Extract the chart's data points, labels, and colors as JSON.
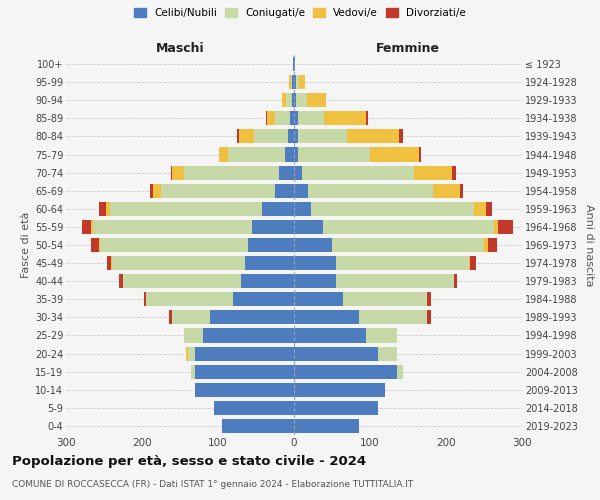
{
  "age_groups": [
    "0-4",
    "5-9",
    "10-14",
    "15-19",
    "20-24",
    "25-29",
    "30-34",
    "35-39",
    "40-44",
    "45-49",
    "50-54",
    "55-59",
    "60-64",
    "65-69",
    "70-74",
    "75-79",
    "80-84",
    "85-89",
    "90-94",
    "95-99",
    "100+"
  ],
  "birth_years": [
    "2019-2023",
    "2014-2018",
    "2009-2013",
    "2004-2008",
    "1999-2003",
    "1994-1998",
    "1989-1993",
    "1984-1988",
    "1979-1983",
    "1974-1978",
    "1969-1973",
    "1964-1968",
    "1959-1963",
    "1954-1958",
    "1949-1953",
    "1944-1948",
    "1939-1943",
    "1934-1938",
    "1929-1933",
    "1924-1928",
    "≤ 1923"
  ],
  "colors": {
    "celibe": "#4d7dbe",
    "coniugato": "#c8d9a8",
    "vedovo": "#f0c040",
    "divorziato": "#c0392b"
  },
  "maschi": {
    "celibe": [
      95,
      105,
      130,
      130,
      130,
      120,
      110,
      80,
      70,
      65,
      60,
      55,
      42,
      25,
      20,
      12,
      8,
      5,
      3,
      2,
      1
    ],
    "coniugato": [
      0,
      0,
      0,
      5,
      10,
      25,
      50,
      115,
      155,
      175,
      195,
      210,
      200,
      150,
      125,
      75,
      45,
      20,
      8,
      2,
      0
    ],
    "vedovo": [
      0,
      0,
      0,
      0,
      2,
      0,
      0,
      0,
      0,
      1,
      2,
      2,
      5,
      10,
      15,
      12,
      20,
      10,
      5,
      2,
      0
    ],
    "divorziato": [
      0,
      0,
      0,
      0,
      0,
      0,
      5,
      3,
      5,
      5,
      10,
      12,
      10,
      5,
      2,
      0,
      2,
      2,
      0,
      0,
      0
    ]
  },
  "femmine": {
    "nubile": [
      85,
      110,
      120,
      135,
      110,
      95,
      85,
      65,
      55,
      55,
      50,
      38,
      22,
      18,
      10,
      5,
      5,
      5,
      2,
      2,
      1
    ],
    "coniugata": [
      0,
      0,
      0,
      8,
      25,
      40,
      90,
      110,
      155,
      175,
      200,
      225,
      215,
      165,
      148,
      95,
      65,
      35,
      15,
      5,
      0
    ],
    "vedova": [
      0,
      0,
      0,
      0,
      0,
      0,
      0,
      0,
      0,
      2,
      5,
      5,
      15,
      35,
      50,
      65,
      68,
      55,
      25,
      8,
      0
    ],
    "divorziata": [
      0,
      0,
      0,
      0,
      0,
      0,
      5,
      5,
      5,
      8,
      12,
      20,
      8,
      5,
      5,
      2,
      5,
      2,
      0,
      0,
      0
    ]
  },
  "title": "Popolazione per età, sesso e stato civile - 2024",
  "subtitle": "COMUNE DI ROCCASECCA (FR) - Dati ISTAT 1° gennaio 2024 - Elaborazione TUTTITALIA.IT",
  "ylabel_left": "Fasce di età",
  "ylabel_right": "Anni di nascita",
  "xlabel_left": "Maschi",
  "xlabel_right": "Femmine",
  "xlim": 300,
  "bg_color": "#f5f5f5",
  "grid_color": "#cccccc"
}
